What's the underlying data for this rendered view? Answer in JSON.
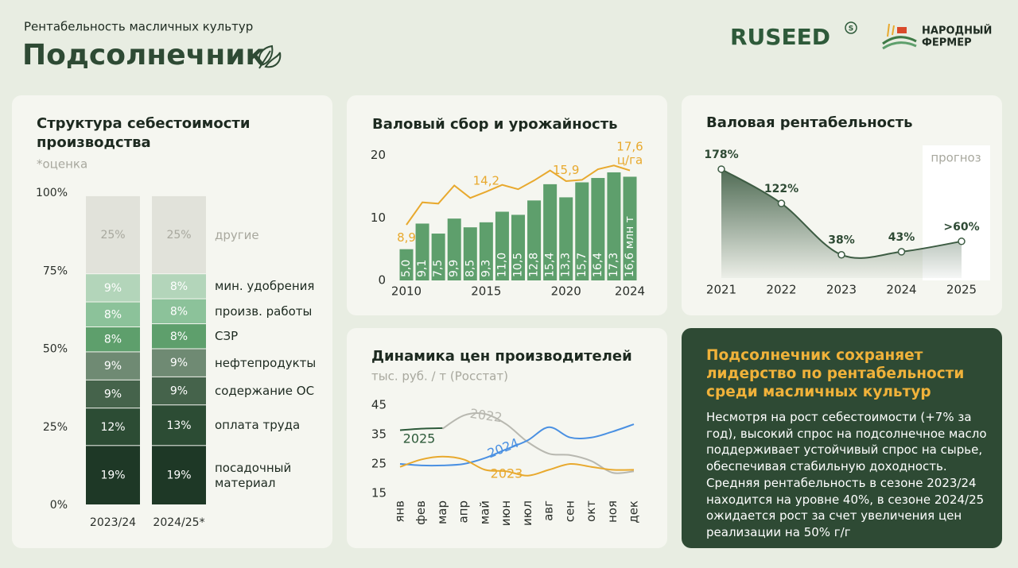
{
  "header": {
    "subtitle": "Рентабельность масличных культур",
    "title": "Подсолнечник",
    "logo": "RUSEED",
    "logo_mark": "S",
    "partner": [
      "НАРОДНЫЙ",
      "ФЕРМЕР"
    ]
  },
  "chart_data": [
    {
      "type": "stacked_bar",
      "title": "Структура себестоимости производства",
      "note": "*оценка",
      "categories": [
        "2023/24",
        "2024/25*"
      ],
      "ylim": [
        0,
        100
      ],
      "yticks": [
        {
          "value": 0,
          "label": "0%"
        },
        {
          "value": 25,
          "label": "25%"
        },
        {
          "value": 50,
          "label": "50%"
        },
        {
          "value": 75,
          "label": "75%"
        },
        {
          "value": 100,
          "label": "100%"
        }
      ],
      "series": [
        {
          "name": "посадочный материал",
          "color": "#1e3826",
          "values": [
            19,
            19
          ],
          "value_labels": [
            "19%",
            "19%"
          ]
        },
        {
          "name": "оплата труда",
          "color": "#2c4c34",
          "values": [
            12,
            13
          ],
          "value_labels": [
            "12%",
            "13%"
          ]
        },
        {
          "name": "содержание ОС",
          "color": "#45634b",
          "values": [
            9,
            9
          ],
          "value_labels": [
            "9%",
            "9%"
          ]
        },
        {
          "name": "нефтепродукты",
          "color": "#6f8a73",
          "values": [
            9,
            9
          ],
          "value_labels": [
            "9%",
            "9%"
          ]
        },
        {
          "name": "СЗР",
          "color": "#5e9f6c",
          "values": [
            8,
            8
          ],
          "value_labels": [
            "8%",
            "8%"
          ]
        },
        {
          "name": "произв. работы",
          "color": "#8cc29a",
          "values": [
            8,
            8
          ],
          "value_labels": [
            "8%",
            "8%"
          ]
        },
        {
          "name": "мин. удобрения",
          "color": "#b3d5ba",
          "values": [
            9,
            8
          ],
          "value_labels": [
            "9%",
            "8%"
          ]
        },
        {
          "name": "другие",
          "color": "#e1e2da",
          "values": [
            25,
            25
          ],
          "value_labels": [
            "25%",
            "25%"
          ]
        }
      ]
    },
    {
      "type": "bar_line",
      "title": "Валовый сбор и урожайность",
      "x": [
        2010,
        2011,
        2012,
        2013,
        2014,
        2015,
        2016,
        2017,
        2018,
        2019,
        2020,
        2021,
        2022,
        2023,
        2024
      ],
      "xticks": [
        2010,
        2015,
        2020,
        2024
      ],
      "ylim": [
        0,
        22
      ],
      "yticks": [
        0,
        10,
        20
      ],
      "grid": false,
      "series": [
        {
          "name": "валовый сбор",
          "kind": "bar",
          "color": "#5e9f6c",
          "values": [
            5.0,
            9.1,
            7.5,
            9.9,
            8.5,
            9.3,
            11.0,
            10.5,
            12.8,
            15.4,
            13.3,
            15.7,
            16.4,
            17.3,
            16.6
          ],
          "value_labels": [
            "5,0",
            "9,1",
            "7,5",
            "9,9",
            "8,5",
            "9,3",
            "11,0",
            "10,5",
            "12,8",
            "15,4",
            "13,3",
            "15,7",
            "16,4",
            "17,3",
            "16,6 млн т"
          ]
        },
        {
          "name": "урожайность",
          "kind": "line",
          "color": "#e8a92e",
          "values": [
            8.9,
            12.5,
            12.3,
            15.2,
            13.2,
            14.2,
            15.3,
            14.6,
            16.0,
            17.6,
            15.9,
            16.1,
            17.8,
            18.4,
            17.6
          ],
          "value_labels": [
            "8,9",
            null,
            null,
            null,
            null,
            "14,2",
            null,
            null,
            null,
            null,
            "15,9",
            null,
            null,
            null,
            "17,6 ц/га"
          ]
        }
      ]
    },
    {
      "type": "area",
      "title": "Валовая рентабельность",
      "annotation": "прогноз",
      "x": [
        2021,
        2022,
        2023,
        2024,
        2025
      ],
      "values": [
        178,
        122,
        38,
        43,
        60
      ],
      "value_labels": [
        "178%",
        "122%",
        "38%",
        "43%",
        ">60%"
      ],
      "color": "#3d5c43"
    },
    {
      "type": "line",
      "title": "Динамика цен производителей",
      "subtitle": "тыс. руб. / т (Росстат)",
      "categories": [
        "янв",
        "фев",
        "мар",
        "апр",
        "май",
        "июн",
        "июл",
        "авг",
        "сен",
        "окт",
        "ноя",
        "дек"
      ],
      "ylim": [
        15,
        45
      ],
      "yticks": [
        15,
        25,
        35,
        45
      ],
      "series": [
        {
          "name": "2025",
          "color": "#2d5a3a",
          "values": [
            36.5,
            37,
            37.2,
            null,
            null,
            null,
            null,
            null,
            null,
            null,
            null,
            null
          ]
        },
        {
          "name": "2022",
          "color": "#b8b8b0",
          "values": [
            null,
            null,
            37,
            41.5,
            42,
            38.5,
            32.5,
            28.5,
            28,
            26,
            22,
            22.5
          ]
        },
        {
          "name": "2024",
          "color": "#4a90e2",
          "values": [
            25,
            24.5,
            24.5,
            25,
            27,
            30,
            33,
            37.5,
            34,
            34,
            36,
            38.5
          ]
        },
        {
          "name": "2023",
          "color": "#e8a92e",
          "values": [
            24,
            26.5,
            27.5,
            26.5,
            23,
            22.5,
            21,
            23,
            25,
            24,
            23,
            23
          ]
        }
      ]
    }
  ],
  "summary": {
    "title": "Подсолнечник сохраняет лидерство по рентабельности среди масличных культур",
    "body": "Несмотря на рост себестоимости (+7% за год), высокий спрос на подсолнечное масло поддерживает устойчивый спрос на сырье, обеспечивая стабильную доходность. Средняя рентабельность в сезоне 2023/24 находится на уровне 40%, в сезоне 2024/25 ожидается рост за счет увеличения цен реализации на 50% г/г"
  }
}
